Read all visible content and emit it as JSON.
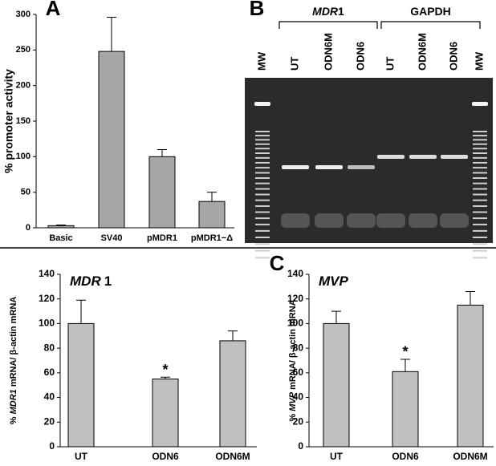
{
  "chart_data": [
    {
      "type": "bar",
      "panel": "A",
      "y_label": "% promoter activity",
      "categories": [
        "Basic",
        "SV40",
        "pMDR1",
        "pMDR1−Δ"
      ],
      "values": [
        3,
        248,
        100,
        37
      ],
      "errors": [
        1,
        48,
        10,
        13
      ],
      "color": "#a6a6a6",
      "ylim": [
        0,
        300
      ],
      "yticks": [
        0,
        50,
        100,
        150,
        200,
        250,
        300
      ]
    },
    {
      "type": "bar",
      "title": [
        "MDR",
        "1"
      ],
      "y_label": [
        "% ",
        "MDR1",
        " mRNA/ β-actin mRNA"
      ],
      "categories": [
        "UT",
        "ODN6",
        "ODN6M"
      ],
      "values": [
        100,
        55,
        86
      ],
      "errors": [
        19,
        1.5,
        8
      ],
      "color": "#c0c0c0",
      "annotation": {
        "text": "*",
        "category": "ODN6"
      },
      "ylim": [
        0,
        140
      ],
      "yticks": [
        0,
        20,
        40,
        60,
        80,
        100,
        120,
        140
      ]
    },
    {
      "type": "bar",
      "panel": "C",
      "title": [
        "MVP"
      ],
      "y_label": [
        "% ",
        "MVP",
        " mRNA/ β-actin mRNA"
      ],
      "categories": [
        "UT",
        "ODN6",
        "ODN6M"
      ],
      "values": [
        100,
        61,
        115
      ],
      "errors": [
        10,
        10,
        11
      ],
      "color": "#c0c0c0",
      "annotation": {
        "text": "*",
        "category": "ODN6"
      },
      "ylim": [
        0,
        140
      ],
      "yticks": [
        0,
        20,
        40,
        60,
        80,
        100,
        120,
        140
      ]
    }
  ],
  "gel": {
    "panel": "B",
    "groups": [
      {
        "label": [
          "MDR",
          "1"
        ]
      },
      {
        "label": [
          "GAPDH"
        ]
      }
    ],
    "lanes": [
      "MW",
      "UT",
      "ODN6M",
      "ODN6",
      "UT",
      "ODN6M",
      "ODN6",
      "MW"
    ]
  }
}
